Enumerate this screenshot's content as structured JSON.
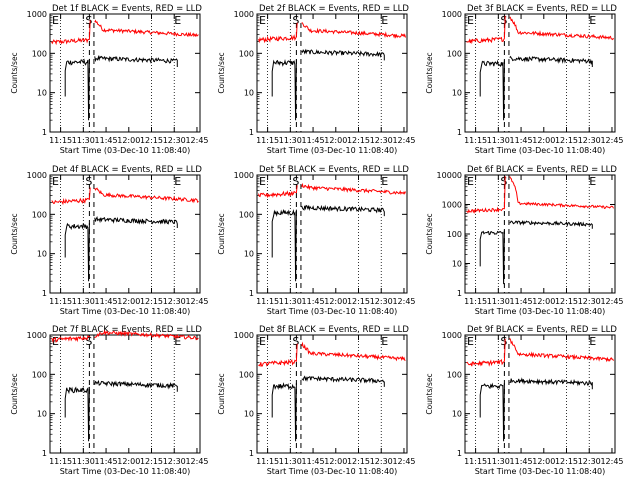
{
  "figure": {
    "ylabel": "Counts/sec",
    "xlabel": "Start Time (03-Dec-10 11:08:40)",
    "title_suffix": "BLACK = Events, RED = LLD",
    "x_ticks": [
      "11:15",
      "11:30",
      "11:45",
      "12:00",
      "12:15",
      "12:30",
      "12:45"
    ],
    "marker_S": "S",
    "marker_E": "E",
    "colors": {
      "events": "#000000",
      "lld": "#ff0000",
      "axes": "#000000",
      "background": "#ffffff"
    }
  },
  "chart_data": [
    {
      "type": "line",
      "title": "Det 1f BLACK = Events, RED = LLD",
      "detector": "1f",
      "ylim": [
        1,
        1000
      ],
      "y_scale": "log",
      "series": [
        {
          "name": "Events",
          "color": "#000000",
          "segments": [
            [
              "11:19",
              10
            ],
            [
              "11:20",
              60
            ],
            [
              "11:31",
              60
            ],
            [
              "11:32",
              50
            ],
            [
              "11:33",
              45
            ]
          ],
          "after": [
            [
              "11:57",
              80
            ],
            [
              "12:05",
              70
            ],
            [
              "12:30",
              65
            ]
          ]
        },
        {
          "name": "LLD",
          "color": "#ff0000",
          "start": [
            "11:10",
            190
          ],
          "pre": [
            [
              "11:33",
              210
            ]
          ],
          "after": [
            [
              "11:57",
              700
            ],
            [
              "12:05",
              400
            ],
            [
              "12:45",
              270
            ]
          ]
        }
      ]
    },
    {
      "type": "line",
      "title": "Det 2f BLACK = Events, RED = LLD",
      "detector": "2f",
      "ylim": [
        1,
        1000
      ],
      "y_scale": "log",
      "series": [
        {
          "name": "Events",
          "color": "#000000"
        },
        {
          "name": "LLD",
          "color": "#ff0000"
        }
      ]
    },
    {
      "type": "line",
      "title": "Det 3f BLACK = Events, RED = LLD",
      "detector": "3f",
      "ylim": [
        1,
        1000
      ],
      "y_scale": "log",
      "series": [
        {
          "name": "Events",
          "color": "#000000"
        },
        {
          "name": "LLD",
          "color": "#ff0000"
        }
      ]
    },
    {
      "type": "line",
      "title": "Det 4f BLACK = Events, RED = LLD",
      "detector": "4f",
      "ylim": [
        1,
        1000
      ],
      "y_scale": "log",
      "series": [
        {
          "name": "Events",
          "color": "#000000"
        },
        {
          "name": "LLD",
          "color": "#ff0000"
        }
      ]
    },
    {
      "type": "line",
      "title": "Det 5f BLACK = Events, RED = LLD",
      "detector": "5f",
      "ylim": [
        1,
        1000
      ],
      "y_scale": "log",
      "series": [
        {
          "name": "Events",
          "color": "#000000"
        },
        {
          "name": "LLD",
          "color": "#ff0000"
        }
      ]
    },
    {
      "type": "line",
      "title": "Det 6f BLACK = Events, RED = LLD",
      "detector": "6f",
      "ylim": [
        1,
        10000
      ],
      "y_scale": "log",
      "series": [
        {
          "name": "Events",
          "color": "#000000"
        },
        {
          "name": "LLD",
          "color": "#ff0000"
        }
      ]
    },
    {
      "type": "line",
      "title": "Det 7f BLACK = Events, RED = LLD",
      "detector": "7f",
      "ylim": [
        1,
        1000
      ],
      "y_scale": "log",
      "series": [
        {
          "name": "Events",
          "color": "#000000"
        },
        {
          "name": "LLD",
          "color": "#ff0000"
        }
      ]
    },
    {
      "type": "line",
      "title": "Det 8f BLACK = Events, RED = LLD",
      "detector": "8f",
      "ylim": [
        1,
        1000
      ],
      "y_scale": "log",
      "series": [
        {
          "name": "Events",
          "color": "#000000"
        },
        {
          "name": "LLD",
          "color": "#ff0000"
        }
      ]
    },
    {
      "type": "line",
      "title": "Det 9f BLACK = Events, RED = LLD",
      "detector": "9f",
      "ylim": [
        1,
        1000
      ],
      "y_scale": "log",
      "series": [
        {
          "name": "Events",
          "color": "#000000"
        },
        {
          "name": "LLD",
          "color": "#ff0000"
        }
      ]
    }
  ],
  "profiles": {
    "1f": {
      "ev_pre": 60,
      "ev_post": 75,
      "lld_pre": 190,
      "lld_peak": 700,
      "lld_post": 290
    },
    "2f": {
      "ev_pre": 58,
      "ev_post": 110,
      "lld_pre": 220,
      "lld_peak": 600,
      "lld_post": 280
    },
    "3f": {
      "ev_pre": 55,
      "ev_post": 75,
      "lld_pre": 200,
      "lld_peak": 900,
      "lld_post": 250
    },
    "4f": {
      "ev_pre": 50,
      "ev_post": 75,
      "lld_pre": 200,
      "lld_peak": 480,
      "lld_post": 230
    },
    "5f": {
      "ev_pre": 110,
      "ev_post": 150,
      "lld_pre": 300,
      "lld_peak": 550,
      "lld_post": 350
    },
    "6f": {
      "ev_pre": 110,
      "ev_post": 250,
      "lld_pre": 600,
      "lld_peak": 9000,
      "lld_post": 800
    },
    "7f": {
      "ev_pre": 40,
      "ev_post": 60,
      "lld_pre": 750,
      "lld_peak": 900,
      "lld_post": 850
    },
    "8f": {
      "ev_pre": 50,
      "ev_post": 80,
      "lld_pre": 180,
      "lld_peak": 600,
      "lld_post": 250
    },
    "9f": {
      "ev_pre": 50,
      "ev_post": 70,
      "lld_pre": 180,
      "lld_peak": 800,
      "lld_post": 240
    }
  }
}
